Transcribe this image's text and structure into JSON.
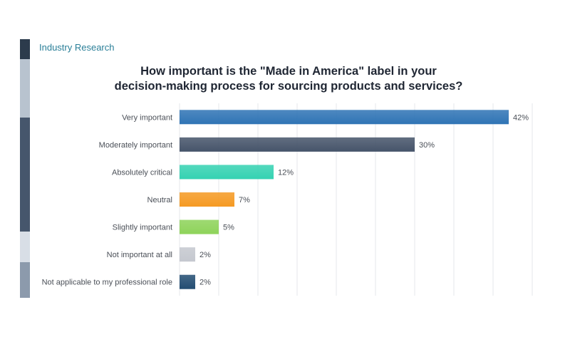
{
  "brand": "Industry Research",
  "chart_data": {
    "type": "bar",
    "orientation": "horizontal",
    "title": "How important is the \"Made in America\" label in your decision-making process for sourcing products and services?",
    "title_lines": [
      "How important is the \"Made in America\" label in your",
      "decision-making process for sourcing products and services?"
    ],
    "categories": [
      "Very important",
      "Moderately important",
      "Absolutely critical",
      "Neutral",
      "Slightly important",
      "Not important at all",
      "Not applicable to my professional role"
    ],
    "values": [
      42,
      30,
      12,
      7,
      5,
      2,
      2
    ],
    "value_labels": [
      "42%",
      "30%",
      "12%",
      "7%",
      "5%",
      "2%",
      "2%"
    ],
    "colors": [
      "#2f74b5",
      "#46546a",
      "#35d2b2",
      "#f59a23",
      "#8ed35a",
      "#c5c8cf",
      "#234d72"
    ],
    "xlim": [
      0,
      45
    ],
    "grid": true,
    "legend": "none"
  }
}
